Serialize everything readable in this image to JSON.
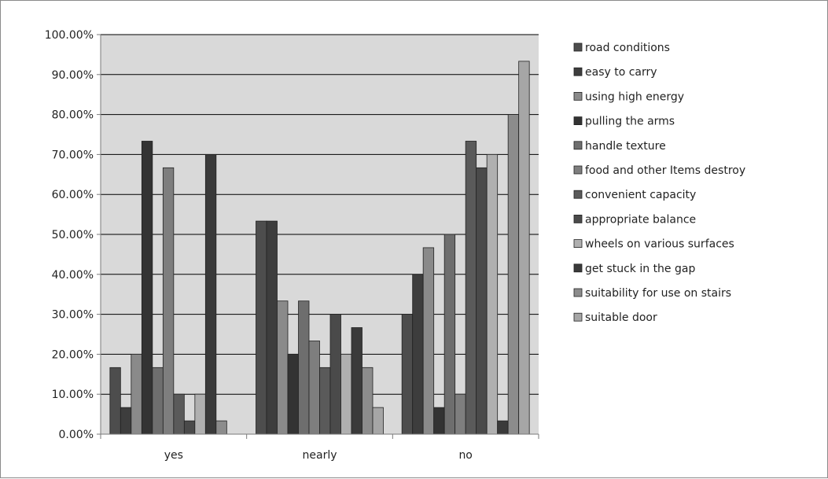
{
  "chart_data": {
    "type": "bar",
    "title": "",
    "xlabel": "",
    "ylabel": "",
    "ylim": [
      0,
      1
    ],
    "y_ticks": [
      "0.00%",
      "10.00%",
      "20.00%",
      "30.00%",
      "40.00%",
      "50.00%",
      "60.00%",
      "70.00%",
      "80.00%",
      "90.00%",
      "100.00%"
    ],
    "categories": [
      "yes",
      "nearly",
      "no"
    ],
    "grid": true,
    "legend_position": "right",
    "series": [
      {
        "name": "road conditions",
        "color": "#4d4d4d",
        "values": [
          0.1667,
          0.5333,
          0.3
        ]
      },
      {
        "name": "easy to carry",
        "color": "#3d3d3d",
        "values": [
          0.0667,
          0.5333,
          0.4
        ]
      },
      {
        "name": "using high energy",
        "color": "#8a8a8a",
        "values": [
          0.2,
          0.3333,
          0.4667
        ]
      },
      {
        "name": "pulling the arms",
        "color": "#333333",
        "values": [
          0.7333,
          0.2,
          0.0667
        ]
      },
      {
        "name": "handle texture",
        "color": "#6e6e6e",
        "values": [
          0.1667,
          0.3333,
          0.5
        ]
      },
      {
        "name": "food and other Items destroy",
        "color": "#7e7e7e",
        "values": [
          0.6667,
          0.2333,
          0.1
        ]
      },
      {
        "name": "convenient capacity",
        "color": "#5a5a5a",
        "values": [
          0.1,
          0.1667,
          0.7333
        ]
      },
      {
        "name": "appropriate balance",
        "color": "#4a4a4a",
        "values": [
          0.0333,
          0.3,
          0.6667
        ]
      },
      {
        "name": "wheels on various surfaces",
        "color": "#b0b0b0",
        "values": [
          0.1,
          0.2,
          0.7
        ]
      },
      {
        "name": "get stuck in the gap",
        "color": "#3a3a3a",
        "values": [
          0.7,
          0.2667,
          0.0333
        ]
      },
      {
        "name": "suitability for use on stairs",
        "color": "#8c8c8c",
        "values": [
          0.0333,
          0.1667,
          0.8
        ]
      },
      {
        "name": "suitable door",
        "color": "#a6a6a6",
        "values": [
          0.0,
          0.0667,
          0.9333
        ]
      }
    ]
  }
}
